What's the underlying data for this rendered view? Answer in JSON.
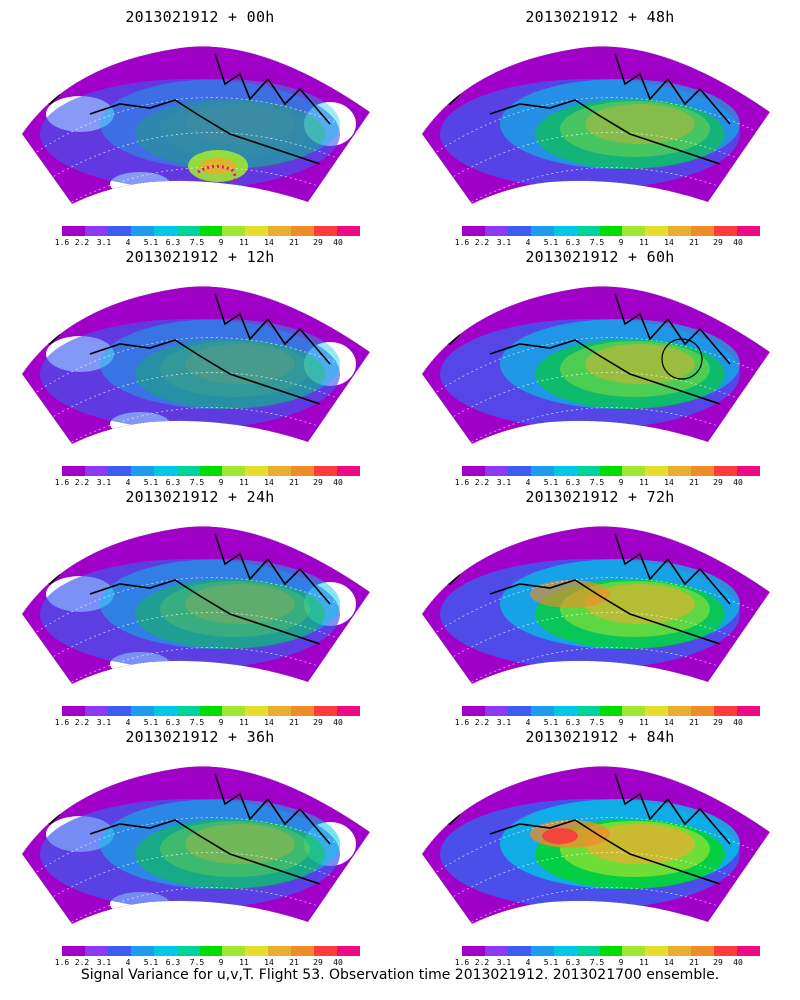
{
  "panels": [
    {
      "title": "2013021912 + 00h",
      "hot": 0.05
    },
    {
      "title": "2013021912 + 48h",
      "hot": 0.45
    },
    {
      "title": "2013021912 + 12h",
      "hot": 0.12
    },
    {
      "title": "2013021912 + 60h",
      "hot": 0.55
    },
    {
      "title": "2013021912 + 24h",
      "hot": 0.25
    },
    {
      "title": "2013021912 + 72h",
      "hot": 0.7
    },
    {
      "title": "2013021912 + 36h",
      "hot": 0.35
    },
    {
      "title": "2013021912 + 84h",
      "hot": 0.85
    }
  ],
  "colorbar": {
    "labels": [
      "1.6",
      "2.2",
      "3.1",
      "4",
      "5.1",
      "6.3",
      "7.5",
      "9",
      "11",
      "14",
      "21",
      "29",
      "40"
    ],
    "colors": [
      "#a000c8",
      "#8c3cf0",
      "#3c5cf0",
      "#1e9cf0",
      "#00c8e6",
      "#00d29a",
      "#00dc00",
      "#a0e632",
      "#e6dc32",
      "#e6af2d",
      "#f08c28",
      "#fa3c3c",
      "#f00a82"
    ]
  },
  "footer": "Signal Variance for u,v,T. Flight 53. Observation time 2013021912. 2013021700 ensemble."
}
